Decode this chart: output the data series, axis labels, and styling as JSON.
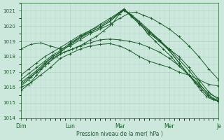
{
  "xlabel": "Pression niveau de la mer( hPa )",
  "bg_color": "#cce8dd",
  "grid_color": "#aacfbf",
  "line_color": "#1a5c2a",
  "ylim": [
    1014.0,
    1021.5
  ],
  "yticks": [
    1014,
    1015,
    1016,
    1017,
    1018,
    1019,
    1020,
    1021
  ],
  "xtick_labels": [
    "Dim",
    "Lun",
    "Mar",
    "Mer",
    "Je"
  ],
  "xtick_positions": [
    0,
    0.25,
    0.5,
    0.75,
    1.0
  ],
  "series": [
    {
      "x": [
        0.0,
        0.05,
        0.1,
        0.15,
        0.2,
        0.25,
        0.3,
        0.35,
        0.4,
        0.45,
        0.5,
        0.55,
        0.6,
        0.65,
        0.7,
        0.75,
        0.8,
        0.85,
        0.9,
        0.95,
        1.0
      ],
      "y": [
        1016.0,
        1016.3,
        1016.8,
        1017.3,
        1017.9,
        1018.2,
        1018.5,
        1018.7,
        1018.8,
        1018.85,
        1018.7,
        1018.4,
        1018.0,
        1017.7,
        1017.5,
        1017.3,
        1017.0,
        1016.8,
        1016.5,
        1016.2,
        1016.1
      ]
    },
    {
      "x": [
        0.0,
        0.04,
        0.08,
        0.12,
        0.16,
        0.2,
        0.24,
        0.28,
        0.32,
        0.35,
        0.38,
        0.42,
        0.46,
        0.5,
        0.52,
        0.56,
        0.6,
        0.64,
        0.68,
        0.72,
        0.76,
        0.8,
        0.85,
        0.9,
        0.95,
        1.0
      ],
      "y": [
        1015.8,
        1016.2,
        1016.8,
        1017.4,
        1017.9,
        1018.2,
        1018.4,
        1018.6,
        1018.85,
        1019.1,
        1019.3,
        1019.7,
        1020.1,
        1020.8,
        1021.0,
        1020.7,
        1020.2,
        1019.5,
        1019.0,
        1018.5,
        1018.0,
        1017.4,
        1016.8,
        1016.2,
        1015.6,
        1015.3
      ]
    },
    {
      "x": [
        0.0,
        0.04,
        0.08,
        0.12,
        0.16,
        0.2,
        0.25,
        0.3,
        0.35,
        0.4,
        0.45,
        0.5,
        0.52,
        0.56,
        0.6,
        0.65,
        0.7,
        0.75,
        0.8,
        0.85,
        0.9,
        0.95,
        1.0
      ],
      "y": [
        1016.1,
        1016.5,
        1017.0,
        1017.5,
        1018.0,
        1018.3,
        1018.8,
        1019.3,
        1019.6,
        1019.9,
        1020.3,
        1020.85,
        1021.05,
        1020.6,
        1020.1,
        1019.5,
        1019.0,
        1018.5,
        1018.0,
        1017.3,
        1016.5,
        1015.7,
        1015.2
      ]
    },
    {
      "x": [
        0.0,
        0.04,
        0.08,
        0.12,
        0.16,
        0.2,
        0.25,
        0.3,
        0.35,
        0.4,
        0.45,
        0.5,
        0.52,
        0.56,
        0.6,
        0.65,
        0.7,
        0.75,
        0.8,
        0.85,
        0.9,
        0.95,
        1.0
      ],
      "y": [
        1016.3,
        1016.7,
        1017.1,
        1017.6,
        1018.0,
        1018.3,
        1018.8,
        1019.2,
        1019.6,
        1019.9,
        1020.3,
        1020.85,
        1021.05,
        1020.65,
        1020.2,
        1019.6,
        1019.1,
        1018.5,
        1017.8,
        1017.1,
        1016.3,
        1015.5,
        1015.1
      ]
    },
    {
      "x": [
        0.0,
        0.04,
        0.08,
        0.12,
        0.16,
        0.2,
        0.25,
        0.3,
        0.35,
        0.4,
        0.45,
        0.5,
        0.52,
        0.56,
        0.6,
        0.65,
        0.7,
        0.75,
        0.8,
        0.85,
        0.9,
        0.95,
        1.0
      ],
      "y": [
        1016.5,
        1016.9,
        1017.3,
        1017.7,
        1018.1,
        1018.4,
        1018.9,
        1019.3,
        1019.7,
        1020.0,
        1020.4,
        1020.9,
        1021.1,
        1020.7,
        1020.2,
        1019.6,
        1019.0,
        1018.4,
        1017.6,
        1016.8,
        1016.1,
        1015.4,
        1015.1
      ]
    },
    {
      "x": [
        0.0,
        0.04,
        0.08,
        0.12,
        0.16,
        0.2,
        0.25,
        0.3,
        0.35,
        0.4,
        0.45,
        0.5,
        0.52,
        0.56,
        0.6,
        0.65,
        0.7,
        0.75,
        0.8,
        0.85,
        0.9,
        0.95,
        1.0
      ],
      "y": [
        1016.8,
        1017.2,
        1017.6,
        1018.0,
        1018.3,
        1018.6,
        1019.0,
        1019.4,
        1019.7,
        1020.1,
        1020.5,
        1020.9,
        1021.1,
        1020.7,
        1020.3,
        1019.7,
        1019.1,
        1018.4,
        1017.6,
        1016.8,
        1016.1,
        1015.4,
        1015.1
      ]
    },
    {
      "x": [
        0.0,
        0.05,
        0.1,
        0.15,
        0.2,
        0.25,
        0.3,
        0.35,
        0.4,
        0.45,
        0.5,
        0.55,
        0.58,
        0.62,
        0.66,
        0.7,
        0.75,
        0.8,
        0.85,
        0.9,
        0.95,
        1.0
      ],
      "y": [
        1018.5,
        1018.8,
        1018.9,
        1018.7,
        1018.5,
        1018.7,
        1019.1,
        1019.5,
        1019.8,
        1020.1,
        1020.5,
        1020.85,
        1020.9,
        1020.7,
        1020.5,
        1020.2,
        1019.8,
        1019.3,
        1018.7,
        1018.0,
        1017.2,
        1016.5
      ]
    },
    {
      "x": [
        0.0,
        0.05,
        0.1,
        0.14,
        0.18,
        0.22,
        0.26,
        0.3,
        0.35,
        0.4,
        0.45,
        0.5,
        0.55,
        0.6,
        0.65,
        0.7,
        0.75,
        0.8,
        0.85,
        0.88,
        0.91,
        0.94,
        0.97,
        1.0
      ],
      "y": [
        1016.2,
        1016.7,
        1017.2,
        1017.6,
        1018.0,
        1018.3,
        1018.5,
        1018.7,
        1018.9,
        1019.1,
        1019.15,
        1019.1,
        1019.0,
        1018.85,
        1018.6,
        1018.3,
        1017.9,
        1017.4,
        1016.8,
        1016.3,
        1015.8,
        1015.4,
        1015.2,
        1015.1
      ]
    }
  ]
}
